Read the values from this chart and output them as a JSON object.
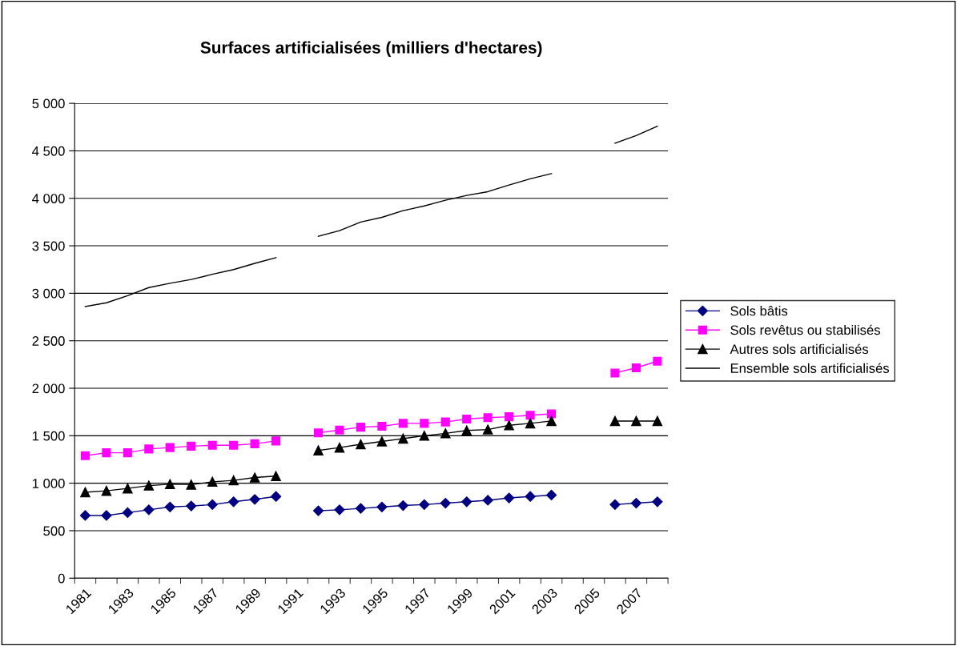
{
  "chart_data": {
    "type": "line",
    "title": "Surfaces artificialisées (milliers d'hectares)",
    "categories": [
      "1981",
      null,
      "1983",
      null,
      "1985",
      null,
      "1987",
      null,
      "1989",
      null,
      "1991",
      null,
      "1993",
      null,
      "1995",
      null,
      "1997",
      null,
      "1999",
      null,
      "2001",
      null,
      "2003",
      null,
      "2005",
      null,
      "2007",
      null
    ],
    "series": [
      {
        "name": "Sols bâtis",
        "color": "#000080",
        "marker": "diamond",
        "values": [
          660,
          660,
          690,
          720,
          750,
          760,
          775,
          805,
          830,
          860,
          null,
          710,
          720,
          735,
          750,
          765,
          775,
          790,
          805,
          820,
          845,
          860,
          875,
          null,
          null,
          775,
          790,
          805
        ]
      },
      {
        "name": "Sols revêtus ou stabilisés",
        "color": "#ff00ff",
        "marker": "square",
        "values": [
          1290,
          1320,
          1320,
          1360,
          1375,
          1390,
          1400,
          1400,
          1415,
          1445,
          null,
          1530,
          1560,
          1590,
          1600,
          1630,
          1630,
          1645,
          1675,
          1690,
          1700,
          1715,
          1730,
          null,
          null,
          2160,
          2215,
          2285
        ]
      },
      {
        "name": "Autres sols artificialisés",
        "color": "#000000",
        "marker": "triangle",
        "values": [
          905,
          920,
          945,
          975,
          990,
          985,
          1015,
          1030,
          1060,
          1075,
          null,
          1345,
          1375,
          1410,
          1440,
          1470,
          1500,
          1525,
          1555,
          1565,
          1610,
          1630,
          1655,
          null,
          null,
          1655,
          1655,
          1655
        ]
      },
      {
        "name": "Ensemble sols artificialisés",
        "color": "#000000",
        "marker": "none",
        "values": [
          2860,
          2900,
          2975,
          3060,
          3105,
          3145,
          3200,
          3250,
          3315,
          3375,
          null,
          3600,
          3660,
          3750,
          3800,
          3870,
          3920,
          3980,
          4030,
          4070,
          4140,
          4205,
          4260,
          null,
          null,
          4580,
          4660,
          4760
        ]
      }
    ],
    "ylim": [
      0,
      5000
    ],
    "yticks": [
      0,
      500,
      {
        "value": 1000,
        "label": "1 000"
      },
      {
        "value": 1500,
        "label": "1 500"
      },
      {
        "value": 2000,
        "label": "2 000"
      },
      {
        "value": 2500,
        "label": "2 500"
      },
      {
        "value": 3000,
        "label": "3 000"
      },
      {
        "value": 3500,
        "label": "3 500"
      },
      {
        "value": 4000,
        "label": "4 000"
      },
      {
        "value": 4500,
        "label": "4 500"
      },
      {
        "value": 5000,
        "label": "5 000"
      }
    ],
    "grid": "y",
    "legend": "right",
    "line_style": "solid"
  }
}
